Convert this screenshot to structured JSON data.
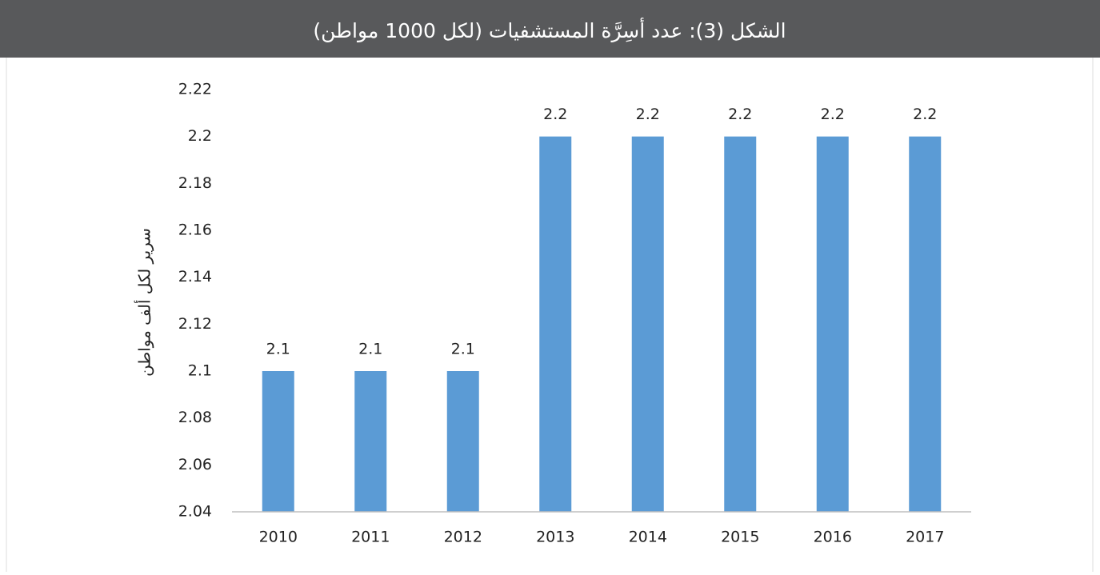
{
  "chart_data": {
    "type": "bar",
    "title": "الشكل (3): عدد أسِرَّة المستشفيات (لكل 1000 مواطن)",
    "y_label": "سرير لكل ألف مواطن",
    "categories": [
      "2010",
      "2011",
      "2012",
      "2013",
      "2014",
      "2015",
      "2016",
      "2017"
    ],
    "values": [
      2.1,
      2.1,
      2.1,
      2.2,
      2.2,
      2.2,
      2.2,
      2.2
    ],
    "color": "#5b9bd5",
    "ylim": [
      2.04,
      2.22
    ],
    "yticks": [
      2.04,
      2.06,
      2.08,
      2.1,
      2.12,
      2.14,
      2.16,
      2.18,
      2.2,
      2.22
    ],
    "grid": false
  }
}
